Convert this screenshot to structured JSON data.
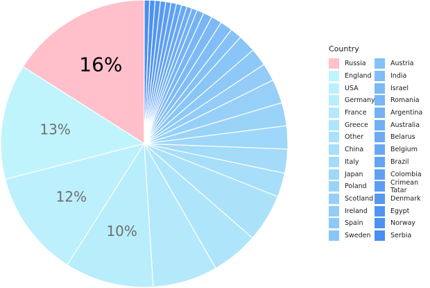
{
  "chart_data": {
    "type": "pie",
    "direction": "counterclockwise from top",
    "legend_title": "Country",
    "legend_placement": "right",
    "categories": [
      "Russia",
      "England",
      "USA",
      "Germany",
      "France",
      "Greece",
      "Other",
      "China",
      "Italy",
      "Japan",
      "Poland",
      "Scotland",
      "Ireland",
      "Spain",
      "Sweden",
      "Austria",
      "India",
      "Israel",
      "Romania",
      "Argentina",
      "Australia",
      "Belarus",
      "Belgium",
      "Brazil",
      "Colombia",
      "Crimean Tatar",
      "Denmark",
      "Egypt",
      "Norway",
      "Serbia"
    ],
    "values": [
      16,
      13,
      12,
      10,
      7.3,
      5.3,
      5.4,
      2.7,
      2.7,
      2.6,
      2.6,
      2.7,
      2.0,
      2.0,
      2.0,
      1.3,
      1.4,
      1.2,
      1.0,
      0.8,
      0.6,
      0.6,
      0.6,
      0.6,
      0.6,
      0.6,
      0.6,
      0.6,
      0.6,
      0.6
    ],
    "data_labels": [
      {
        "category": "Russia",
        "text": "16%",
        "color": "#000000"
      },
      {
        "category": "England",
        "text": "13%",
        "color": "#6e6e6e"
      },
      {
        "category": "USA",
        "text": "12%",
        "color": "#6e6e6e"
      },
      {
        "category": "Germany",
        "text": "10%",
        "color": "#6e6e6e"
      }
    ],
    "colors": {
      "highlight": "#ffc0cb",
      "gradient_start": "#c0f4fc",
      "gradient_end": "#4a8ef0",
      "slice_border": "#ffffff"
    }
  }
}
